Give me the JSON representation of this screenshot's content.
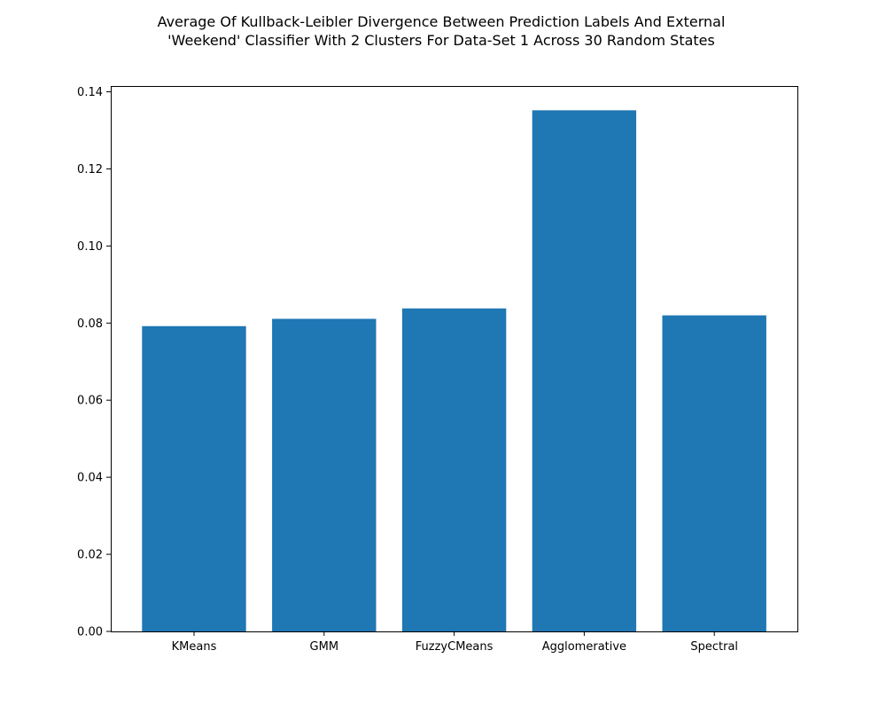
{
  "chart_data": {
    "type": "bar",
    "title_lines": [
      "Average Of Kullback-Leibler Divergence Between Prediction Labels And External",
      "'Weekend' Classifier With 2 Clusters For Data-Set 1 Across 30 Random States"
    ],
    "xlabel": "",
    "ylabel": "",
    "categories": [
      "KMeans",
      "GMM",
      "FuzzyCMeans",
      "Agglomerative",
      "Spectral"
    ],
    "values": [
      0.0792,
      0.0811,
      0.0838,
      0.1352,
      0.082
    ],
    "ylim": [
      0,
      0.1415
    ],
    "yticks": [
      "0.00",
      "0.02",
      "0.04",
      "0.06",
      "0.08",
      "0.10",
      "0.12",
      "0.14"
    ],
    "ytick_values": [
      0,
      0.02,
      0.04,
      0.06,
      0.08,
      0.1,
      0.12,
      0.14
    ],
    "bar_color": "#1f77b4",
    "grid": false,
    "legend": "none"
  }
}
